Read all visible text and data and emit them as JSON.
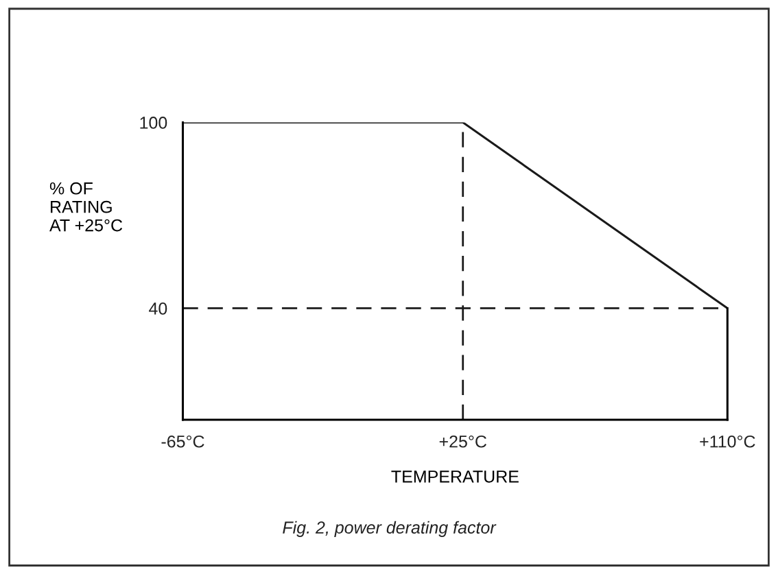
{
  "chart_data": {
    "type": "line",
    "x": [
      -65,
      25,
      110
    ],
    "series": [
      {
        "color": "#1a1a1a",
        "values": [
          100,
          100,
          40
        ]
      }
    ],
    "xlim": [
      -65,
      110
    ],
    "ylim": [
      4,
      100
    ],
    "xticks": [
      {
        "value": -65,
        "label": "-65°C"
      },
      {
        "value": 25,
        "label": "+25°C"
      },
      {
        "value": 110,
        "label": "+110°C"
      }
    ],
    "yticks": [
      40,
      100
    ],
    "ylabel": "% OF\nRATING\nAT +25°C",
    "xlabel": "TEMPERATURE",
    "ref_lines": [
      {
        "axis": "x",
        "value": 25,
        "line_style": "dashed"
      },
      {
        "axis": "y",
        "value": 40,
        "line_style": "dashed"
      }
    ],
    "annotations": [
      "Fig. 2, power derating factor"
    ],
    "grid": false,
    "legend": false,
    "line_style": "solid",
    "marker": "none"
  }
}
